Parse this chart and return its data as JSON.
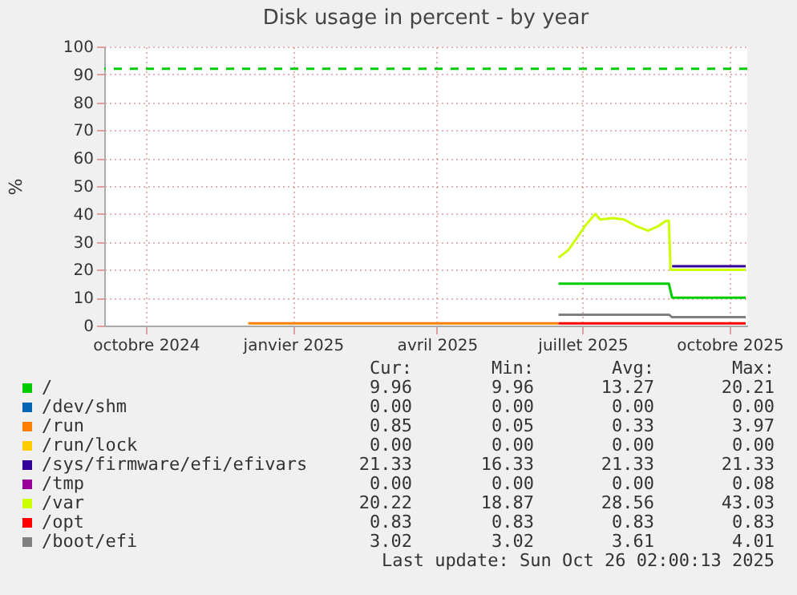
{
  "chart_data": {
    "type": "line",
    "title": "Disk usage in percent - by year",
    "ylabel": "%",
    "xlim": [
      "2024-09-05",
      "2025-10-12"
    ],
    "xticks": [
      {
        "value": "2024-10-01",
        "label": "octobre 2024"
      },
      {
        "value": "2025-01-01",
        "label": "janvier 2025"
      },
      {
        "value": "2025-04-01",
        "label": "avril 2025"
      },
      {
        "value": "2025-07-01",
        "label": "juillet 2025"
      },
      {
        "value": "2025-10-01",
        "label": "octobre 2025"
      }
    ],
    "ylim": [
      0,
      100
    ],
    "yticks": [
      0,
      10,
      20,
      30,
      40,
      50,
      60,
      70,
      80,
      90,
      100
    ],
    "grid": true,
    "legend": "bottom",
    "ref_lines": [
      {
        "axis": "y",
        "value": 92,
        "color": "#00cc00",
        "line_style": "dashed"
      }
    ],
    "series": [
      {
        "name": "/",
        "color": "#00cc00",
        "x": [
          "2025-06-16",
          "2025-08-24",
          "2025-08-26",
          "2025-10-11"
        ],
        "values": [
          15,
          15,
          10,
          10
        ]
      },
      {
        "name": "/dev/shm",
        "color": "#0066b3"
      },
      {
        "name": "/run",
        "color": "#ff8000",
        "x": [
          "2024-12-04",
          "2025-06-16"
        ],
        "values": [
          0.8,
          0.8
        ]
      },
      {
        "name": "/run/lock",
        "color": "#ffcc00"
      },
      {
        "name": "/sys/firmware/efi/efivars",
        "color": "#330099",
        "x": [
          "2025-08-26",
          "2025-10-11"
        ],
        "values": [
          21.3,
          21.3
        ]
      },
      {
        "name": "/tmp",
        "color": "#990099"
      },
      {
        "name": "/var",
        "color": "#ccff00",
        "x": [
          "2025-06-16",
          "2025-06-22",
          "2025-06-27",
          "2025-07-03",
          "2025-07-09",
          "2025-07-12",
          "2025-07-20",
          "2025-07-27",
          "2025-08-04",
          "2025-08-11",
          "2025-08-17",
          "2025-08-22",
          "2025-08-24",
          "2025-08-25",
          "2025-10-11"
        ],
        "values": [
          24.3,
          27,
          31,
          36,
          40,
          38,
          38.5,
          38,
          35.5,
          34,
          35.5,
          37.5,
          37.5,
          20,
          20
        ]
      },
      {
        "name": "/opt",
        "color": "#ff0000",
        "x": [
          "2025-06-16",
          "2025-10-11"
        ],
        "values": [
          0.8,
          0.8
        ]
      },
      {
        "name": "/boot/efi",
        "color": "#808080",
        "x": [
          "2025-06-16",
          "2025-08-24",
          "2025-08-26",
          "2025-10-11"
        ],
        "values": [
          3.9,
          3.9,
          3.0,
          3.0
        ]
      }
    ],
    "annotations": [
      "Cur:",
      "Min:",
      "Avg:",
      "Max:",
      "9.96",
      "9.96",
      "13.27",
      "20.21",
      "0.00",
      "0.00",
      "0.00",
      "0.00",
      "0.85",
      "0.05",
      "0.33",
      "3.97",
      "0.00",
      "0.00",
      "0.00",
      "0.00",
      "21.33",
      "16.33",
      "21.33",
      "21.33",
      "0.00",
      "0.00",
      "0.00",
      "0.08",
      "20.22",
      "18.87",
      "28.56",
      "43.03",
      "0.83",
      "0.83",
      "0.83",
      "0.83",
      "3.02",
      "3.02",
      "3.61",
      "4.01",
      "Last update: Sun Oct 26 02:00:13 2025"
    ]
  }
}
